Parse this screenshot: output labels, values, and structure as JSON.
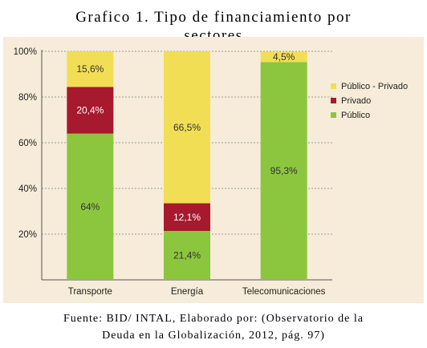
{
  "title_line1": "Grafico 1. Tipo de financiamiento por",
  "title_line2": "sectores",
  "source_line1": "Fuente: BID/ INTAL, Elaborado por: (Observatorio de la",
  "source_line2": "Deuda en la Globalización, 2012, pág. 97)",
  "chart_data": {
    "type": "bar",
    "stacked": true,
    "categories": [
      "Transporte",
      "Energía",
      "Telecomunicaciones"
    ],
    "series": [
      {
        "name": "Público",
        "color": "#8cc63f",
        "values": [
          64,
          21.4,
          95.3
        ],
        "labels": [
          "64%",
          "21,4%",
          "95,3%"
        ],
        "label_color": "#333333"
      },
      {
        "name": "Privado",
        "color": "#a6192e",
        "values": [
          20.4,
          12.1,
          0
        ],
        "labels": [
          "20,4%",
          "12,1%",
          ""
        ],
        "label_color": "#ffffff"
      },
      {
        "name": "Público - Privado",
        "color": "#f2de55",
        "values": [
          15.6,
          66.5,
          4.5
        ],
        "labels": [
          "15,6%",
          "66,5%",
          "4,5%"
        ],
        "label_color": "#333333"
      }
    ],
    "legend_order": [
      "Público - Privado",
      "Privado",
      "Público"
    ],
    "legend_position": "right",
    "yticks": [
      "20%",
      "40%",
      "60%",
      "80%",
      "100%"
    ],
    "ytick_values": [
      20,
      40,
      60,
      80,
      100
    ],
    "ylim": [
      0,
      100
    ],
    "grid": true
  }
}
